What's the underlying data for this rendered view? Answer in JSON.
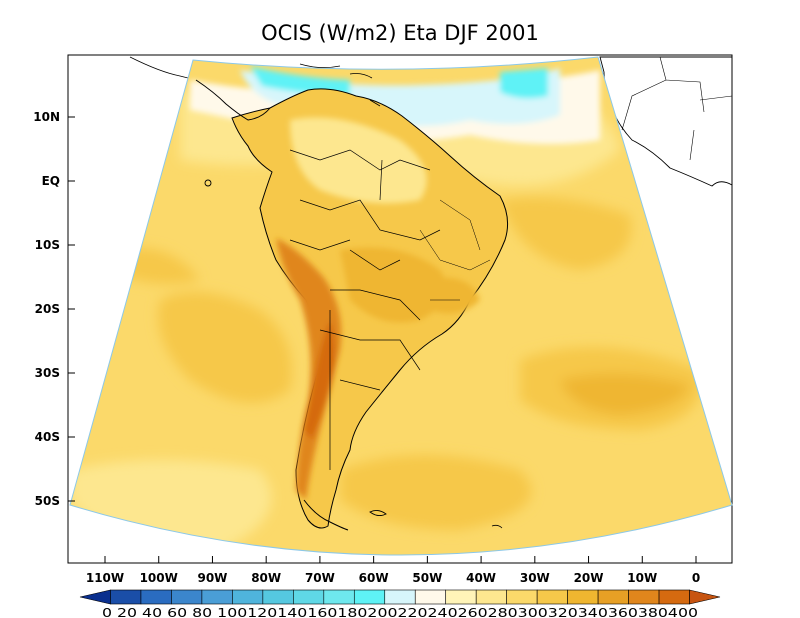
{
  "title": "OCIS (W/m2) Eta DJF 2001",
  "lat_labels": [
    "10N",
    "EQ",
    "10S",
    "20S",
    "30S",
    "40S",
    "50S"
  ],
  "lon_labels": [
    "110W",
    "100W",
    "90W",
    "80W",
    "70W",
    "60W",
    "50W",
    "40W",
    "30W",
    "20W",
    "10W",
    "0"
  ],
  "colorbar": {
    "levels": [
      0,
      20,
      40,
      60,
      80,
      100,
      120,
      140,
      160,
      180,
      200,
      220,
      240,
      260,
      280,
      300,
      320,
      340,
      360,
      380,
      400
    ],
    "label_text": "0  20  40  60  80 100120140160180200220240260280300320340360380400",
    "colors": [
      "#0a2f8e",
      "#1a4ea8",
      "#2a6cc0",
      "#3b86cc",
      "#4a9ed6",
      "#4fb4dc",
      "#55c8e0",
      "#5fd8e6",
      "#6ee8ee",
      "#5ef2f6",
      "#d7f6fb",
      "#fff9ea",
      "#fff4b8",
      "#fde78f",
      "#fbd96a",
      "#f6c84a",
      "#efb630",
      "#e7a025",
      "#e0861c",
      "#d56a10",
      "#c75410"
    ]
  },
  "map_colors": {
    "ocean_base": "#fbd96a",
    "ocean_high": "#f6c84a",
    "ocean_max": "#efb630",
    "low_band": "#d7f6fb",
    "lowest": "#5ef2f6",
    "land_base": "#f6c84a",
    "land_high": "#efb630",
    "andes": "#e0861c",
    "andes_peak": "#d56a10",
    "north_light": "#fde78f",
    "cream": "#fff9ea"
  }
}
